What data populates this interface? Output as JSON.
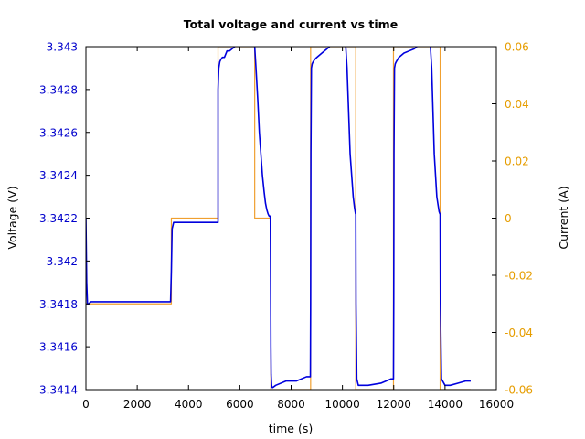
{
  "chart_data": {
    "type": "line",
    "title": "Total voltage and current vs time",
    "xlabel": "time (s)",
    "ylabel": "Voltage (V)",
    "y2label": "Current (A)",
    "xlim": [
      0,
      16000
    ],
    "ylim": [
      3.3414,
      3.343
    ],
    "y2lim": [
      -0.06,
      0.06
    ],
    "grid": false,
    "legend": "none",
    "x_ticks": [
      0,
      2000,
      4000,
      6000,
      8000,
      10000,
      12000,
      14000,
      16000
    ],
    "x_tick_labels": [
      "0",
      "2000",
      "4000",
      "6000",
      "8000",
      "10000",
      "12000",
      "14000",
      "16000"
    ],
    "y_ticks": [
      3.3414,
      3.3416,
      3.3418,
      3.342,
      3.3422,
      3.3424,
      3.3426,
      3.3428,
      3.343
    ],
    "y_tick_labels": [
      "3.3414",
      "3.3416",
      "3.3418",
      "3.342",
      "3.3422",
      "3.3424",
      "3.3426",
      "3.3428",
      "3.343"
    ],
    "y2_ticks": [
      -0.06,
      -0.04,
      -0.02,
      0,
      0.02,
      0.04,
      0.06
    ],
    "y2_tick_labels": [
      "-0.06",
      "-0.04",
      "-0.02",
      "0",
      "0.02",
      "0.04",
      "0.06"
    ],
    "colors": {
      "voltage": "#0000dd",
      "current": "#f0a030",
      "y_axis_text": "#0000cc",
      "y2_axis_text": "#e69d00",
      "frame": "#000000"
    },
    "series": [
      {
        "axis": "y2",
        "x": [
          0,
          3330,
          3330,
          5150,
          5150,
          6580,
          6580,
          7210,
          7210,
          8760,
          8760,
          10520,
          10520,
          11990,
          11990,
          13810,
          13810,
          15000
        ],
        "y": [
          -0.03,
          -0.03,
          0,
          0,
          0.06,
          0.06,
          0,
          0,
          -0.06,
          -0.06,
          0.06,
          0.06,
          -0.06,
          -0.06,
          0.06,
          0.06,
          -0.06,
          -0.06
        ]
      },
      {
        "axis": "y",
        "x": [
          0,
          30,
          60,
          100,
          200,
          300,
          3300,
          3330,
          3360,
          3420,
          3500,
          5150,
          5150,
          5180,
          5220,
          5260,
          5320,
          5400,
          5500,
          5600,
          5800,
          6000,
          6200,
          6400,
          6550,
          6580,
          6630,
          6700,
          6760,
          6820,
          6880,
          6950,
          7000,
          7050,
          7100,
          7140,
          7170,
          7190,
          7200,
          7210,
          7220,
          7240,
          7260,
          7290,
          7400,
          7800,
          8200,
          8600,
          8750,
          8760,
          8770,
          8790,
          8820,
          8860,
          8920,
          9000,
          9200,
          9400,
          9600,
          9800,
          10000,
          10100,
          10130,
          10180,
          10240,
          10300,
          10360,
          10420,
          10470,
          10510,
          10520,
          10530,
          10560,
          10620,
          11000,
          11500,
          11900,
          11990,
          12000,
          12010,
          12030,
          12060,
          12100,
          12200,
          12400,
          12600,
          12800,
          13000,
          13200,
          13360,
          13390,
          13430,
          13480,
          13530,
          13580,
          13630,
          13680,
          13730,
          13770,
          13800,
          13810,
          13820,
          13860,
          14000,
          14200,
          14500,
          14800,
          15000
        ],
        "y": [
          3.3422,
          3.3419,
          3.3418,
          3.3418,
          3.34181,
          3.34181,
          3.34181,
          3.34195,
          3.34215,
          3.34218,
          3.34218,
          3.34218,
          3.3428,
          3.3429,
          3.34293,
          3.34294,
          3.34295,
          3.34295,
          3.34298,
          3.34298,
          3.343,
          3.34302,
          3.34302,
          3.34305,
          3.34308,
          3.343,
          3.3429,
          3.34275,
          3.3426,
          3.3425,
          3.3424,
          3.34232,
          3.34227,
          3.34224,
          3.34222,
          3.34221,
          3.34221,
          3.3422,
          3.3419,
          3.3416,
          3.34147,
          3.34142,
          3.34141,
          3.34141,
          3.34142,
          3.34144,
          3.34144,
          3.34146,
          3.34146,
          3.3418,
          3.3425,
          3.3429,
          3.34292,
          3.34293,
          3.34294,
          3.34295,
          3.34297,
          3.34299,
          3.34301,
          3.34303,
          3.34305,
          3.34308,
          3.343,
          3.3429,
          3.3427,
          3.3425,
          3.3424,
          3.3423,
          3.34225,
          3.34222,
          3.34222,
          3.3418,
          3.34145,
          3.34142,
          3.34142,
          3.34143,
          3.34145,
          3.34145,
          3.3418,
          3.3425,
          3.3429,
          3.34292,
          3.34293,
          3.34295,
          3.34297,
          3.34298,
          3.34299,
          3.34301,
          3.34303,
          3.34305,
          3.34308,
          3.343,
          3.3429,
          3.3427,
          3.3425,
          3.3424,
          3.3423,
          3.34226,
          3.34223,
          3.34222,
          3.34222,
          3.3418,
          3.34145,
          3.34142,
          3.34142,
          3.34143,
          3.34144,
          3.34144
        ]
      }
    ]
  }
}
